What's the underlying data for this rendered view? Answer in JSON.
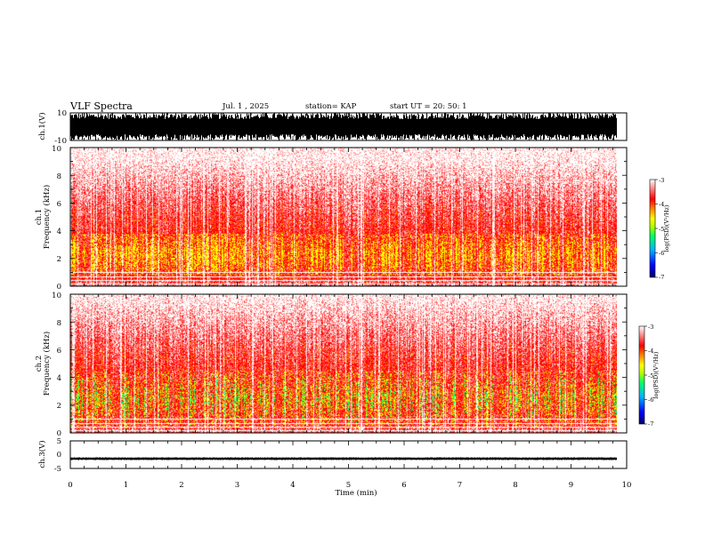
{
  "header": {
    "title": "VLF Spectra",
    "date": "Jul. 1 , 2025",
    "station": "station= KAP",
    "start": "start UT = 20: 50: 1"
  },
  "chart_data": [
    {
      "type": "area",
      "name": "ch1-waveform",
      "ylabel": "ch.1(V)",
      "ylim": [
        -10,
        10
      ],
      "ytick_labels": [
        "10",
        "-10"
      ],
      "xlim": [
        0,
        10
      ],
      "data_extent_min": 9.83,
      "description": "waveform saturating near full scale throughout"
    },
    {
      "type": "heatmap",
      "name": "ch1-spectrogram",
      "ylabel": "ch.1\nFrequency (kHz)",
      "ylim": [
        0,
        10
      ],
      "ytick_labels": [
        "0",
        "2",
        "4",
        "6",
        "8",
        "10"
      ],
      "xlim": [
        0,
        10
      ],
      "data_extent_min": 9.83,
      "enhanced_band_khz": [
        0.8,
        3.8
      ],
      "colorbar": {
        "label": "log(PSD)(V²/Hz)",
        "range": [
          -7,
          -3
        ],
        "ticks": [
          "-3",
          "-4",
          "-5",
          "-6",
          "-7"
        ]
      }
    },
    {
      "type": "heatmap",
      "name": "ch2-spectrogram",
      "ylabel": "ch.2\nFrequency (kHz)",
      "ylim": [
        0,
        10
      ],
      "ytick_labels": [
        "0",
        "2",
        "4",
        "6",
        "8",
        "10"
      ],
      "xlim": [
        0,
        10
      ],
      "data_extent_min": 9.83,
      "enhanced_band_khz": [
        0.5,
        4.5
      ],
      "colorbar": {
        "label": "log(PSD)(V²/Hz)",
        "range": [
          -7,
          -3
        ],
        "ticks": [
          "-3",
          "-4",
          "-5",
          "-6",
          "-7"
        ]
      }
    },
    {
      "type": "area",
      "name": "ch3-waveform",
      "ylabel": "ch.3(V)",
      "ylim": [
        -5,
        5
      ],
      "ytick_labels": [
        "5",
        "0",
        "-5"
      ],
      "xlim": [
        0,
        10
      ],
      "data_extent_min": 9.83,
      "amplitude_v": [
        -1.8,
        -1.1
      ]
    }
  ],
  "xaxis": {
    "label": "Time (min)",
    "ticks": [
      "0",
      "1",
      "2",
      "3",
      "4",
      "5",
      "6",
      "7",
      "8",
      "9",
      "10"
    ]
  },
  "colors": {
    "cmap": [
      "#000066",
      "#0000ff",
      "#00b4ff",
      "#00ff66",
      "#b4ff00",
      "#ffff00",
      "#ff8800",
      "#ff0000",
      "#ffffff"
    ]
  }
}
